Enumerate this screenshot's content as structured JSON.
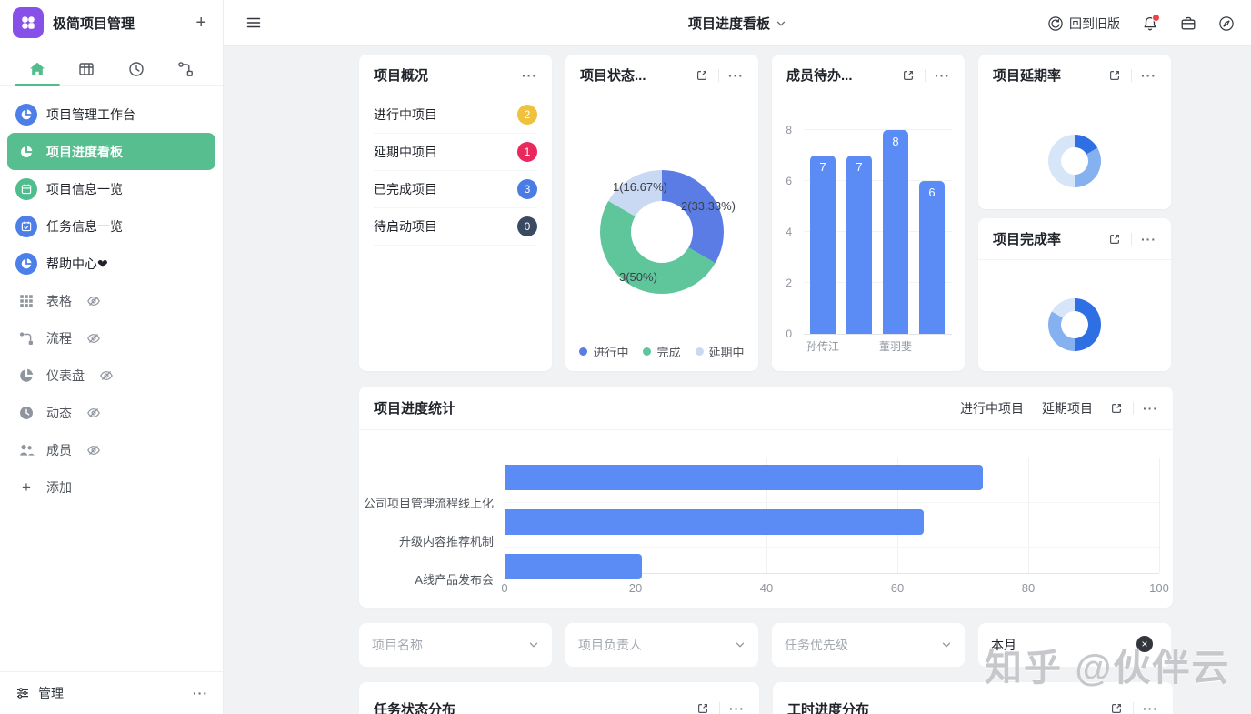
{
  "app": {
    "name": "极简项目管理"
  },
  "ui": {
    "ellipsis": "···",
    "plus": "+",
    "close": "×"
  },
  "topbar": {
    "title": "项目进度看板",
    "back_to_old_label": "回到旧版"
  },
  "sidebar": {
    "items": [
      {
        "label": "项目管理工作台",
        "icon": "pie-chart",
        "icon_color": "#4C7FE8",
        "active": false
      },
      {
        "label": "项目进度看板",
        "icon": "pie-chart",
        "icon_color": "transparent",
        "active": true
      },
      {
        "label": "项目信息一览",
        "icon": "calendar",
        "icon_color": "#50BD8E",
        "active": false
      },
      {
        "label": "任务信息一览",
        "icon": "calendar-check",
        "icon_color": "#4C7FE8",
        "active": false
      },
      {
        "label": "帮助中心❤",
        "icon": "pie-chart",
        "icon_color": "#4C7FE8",
        "active": false
      }
    ],
    "hidden_items": [
      {
        "label": "表格",
        "icon": "table-grid"
      },
      {
        "label": "流程",
        "icon": "flow"
      },
      {
        "label": "仪表盘",
        "icon": "pie-chart"
      },
      {
        "label": "动态",
        "icon": "clock"
      },
      {
        "label": "成员",
        "icon": "members"
      }
    ],
    "add_label": "添加",
    "manage_label": "管理",
    "active_color": "#57BE90",
    "logo_color": "#8750E8"
  },
  "cards": {
    "overview": {
      "title": "项目概况",
      "rows": [
        {
          "label": "进行中项目",
          "value": "2",
          "color": "#EFC13C"
        },
        {
          "label": "延期中项目",
          "value": "1",
          "color": "#E9295E"
        },
        {
          "label": "已完成项目",
          "value": "3",
          "color": "#4B7BE5"
        },
        {
          "label": "待启动项目",
          "value": "0",
          "color": "#3A4A63"
        }
      ]
    },
    "status": {
      "title": "项目状态..."
    },
    "member_todo": {
      "title": "成员待办..."
    },
    "delay_rate": {
      "title": "项目延期率"
    },
    "completion_rate": {
      "title": "项目完成率"
    },
    "progress": {
      "title": "项目进度统计",
      "links": [
        "进行中项目",
        "延期项目"
      ]
    },
    "task_status": {
      "title": "任务状态分布"
    },
    "worktime": {
      "title": "工时进度分布"
    }
  },
  "filters": [
    {
      "placeholder": "项目名称"
    },
    {
      "placeholder": "项目负责人"
    },
    {
      "placeholder": "任务优先级"
    },
    {
      "value": "本月"
    }
  ],
  "watermark": "知乎 @伙伴云",
  "chart_data": [
    {
      "type": "pie",
      "title": "项目状态...",
      "slices": [
        {
          "name": "进行中",
          "value": 2,
          "pct": 33.33,
          "label": "2(33.33%)",
          "color": "#5B7CE4"
        },
        {
          "name": "完成",
          "value": 3,
          "pct": 50,
          "label": "3(50%)",
          "color": "#5FC69B"
        },
        {
          "name": "延期中",
          "value": 1,
          "pct": 16.67,
          "label": "1(16.67%)",
          "color": "#C9D9F4"
        }
      ],
      "legend_position": "bottom"
    },
    {
      "type": "bar",
      "title": "成员待办...",
      "categories": [
        "孙传江",
        "",
        "董羽斐",
        ""
      ],
      "values": [
        7,
        7,
        8,
        6
      ],
      "ylim": [
        0,
        8
      ],
      "yticks": [
        8,
        6,
        4,
        2,
        0
      ],
      "bar_color": "#5B8BF4",
      "grid": true
    },
    {
      "type": "bar-horizontal",
      "title": "项目进度统计",
      "categories": [
        "公司项目管理流程线上化",
        "升级内容推荐机制",
        "A线产品发布会"
      ],
      "values": [
        73,
        64,
        21
      ],
      "xlim": [
        0,
        100
      ],
      "xticks": [
        "0",
        "20",
        "40",
        "60",
        "80",
        "100"
      ],
      "bar_color": "#5B8BF4",
      "grid": true
    },
    {
      "type": "pie",
      "title": "项目延期率",
      "segments": [
        {
          "pct": 16.67,
          "color": "#2F6FE4"
        },
        {
          "pct": 33.33,
          "color": "#85B1F0"
        },
        {
          "pct": 50,
          "color": "#D7E5F8"
        }
      ]
    },
    {
      "type": "pie",
      "title": "项目完成率",
      "segments": [
        {
          "pct": 50,
          "color": "#2F6FE4"
        },
        {
          "pct": 33.33,
          "color": "#85B1F0"
        },
        {
          "pct": 16.67,
          "color": "#D7E5F8"
        }
      ]
    }
  ]
}
